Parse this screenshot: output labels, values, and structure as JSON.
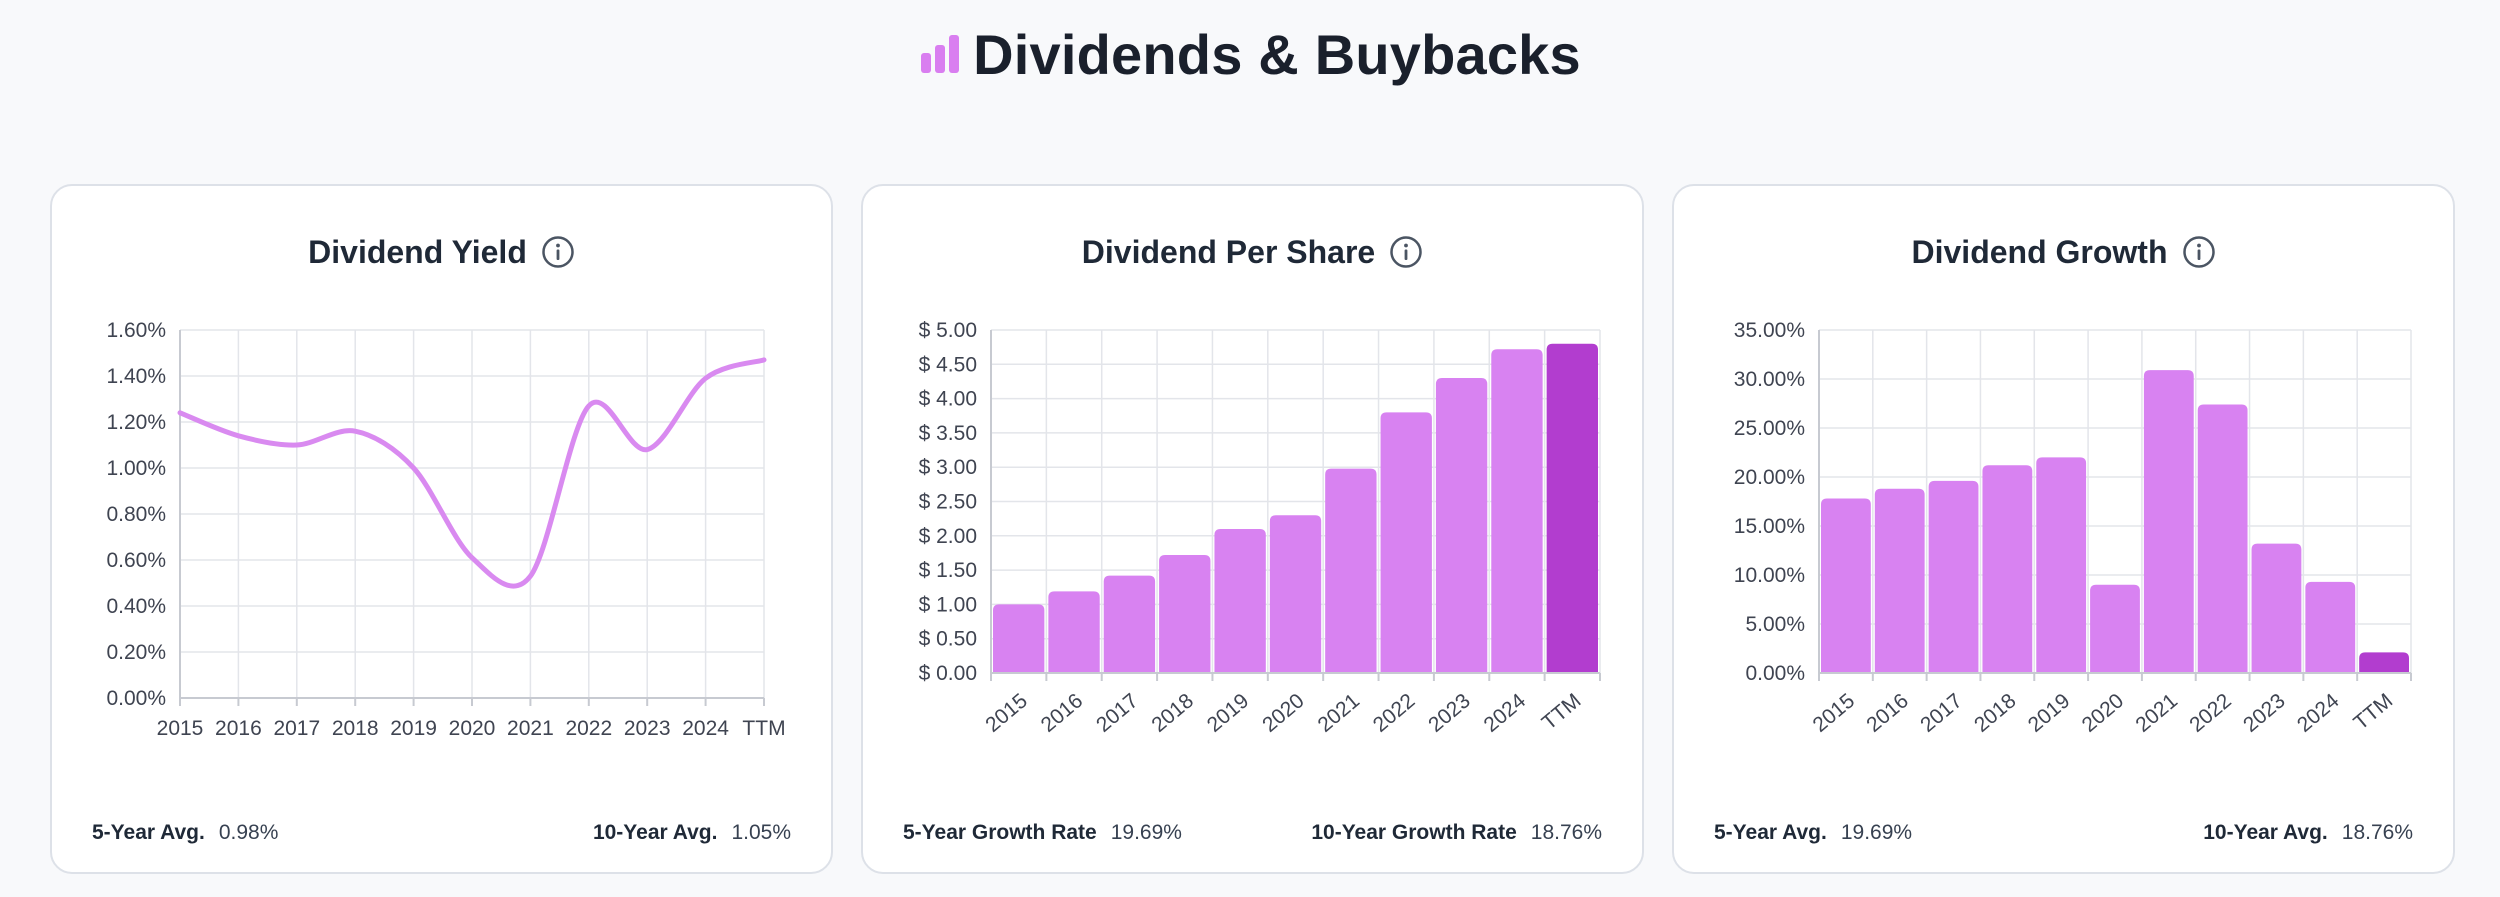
{
  "header": {
    "title": "Dividends & Buybacks",
    "icon": "bar-chart-icon",
    "accent": "#d97ef0"
  },
  "colors": {
    "bar": "#d882f1",
    "bar_highlight": "#b23dcf",
    "line": "#d98af0"
  },
  "cards": {
    "yield": {
      "title": "Dividend Yield",
      "footer": {
        "left_label": "5-Year Avg.",
        "left_value": "0.98%",
        "right_label": "10-Year Avg.",
        "right_value": "1.05%"
      }
    },
    "dps": {
      "title": "Dividend Per Share",
      "footer": {
        "left_label": "5-Year Growth Rate",
        "left_value": "19.69%",
        "right_label": "10-Year Growth Rate",
        "right_value": "18.76%"
      }
    },
    "growth": {
      "title": "Dividend Growth",
      "footer": {
        "left_label": "5-Year Avg.",
        "left_value": "19.69%",
        "right_label": "10-Year Avg.",
        "right_value": "18.76%"
      }
    }
  },
  "chart_data": [
    {
      "id": "yield",
      "type": "line",
      "title": "Dividend Yield",
      "categories": [
        "2015",
        "2016",
        "2017",
        "2018",
        "2019",
        "2020",
        "2021",
        "2022",
        "2023",
        "2024",
        "TTM"
      ],
      "values": [
        1.24,
        1.14,
        1.1,
        1.16,
        1.0,
        0.61,
        0.53,
        1.27,
        1.08,
        1.39,
        1.47
      ],
      "ylim": [
        0,
        1.6
      ],
      "yticks": [
        0,
        0.2,
        0.4,
        0.6,
        0.8,
        1.0,
        1.2,
        1.4,
        1.6
      ],
      "ytick_labels": [
        "0.00%",
        "0.20%",
        "0.40%",
        "0.60%",
        "0.80%",
        "1.00%",
        "1.20%",
        "1.40%",
        "1.60%"
      ],
      "grid": true,
      "xlabel": "",
      "ylabel": ""
    },
    {
      "id": "dps",
      "type": "bar",
      "title": "Dividend Per Share",
      "categories": [
        "2015",
        "2016",
        "2017",
        "2018",
        "2019",
        "2020",
        "2021",
        "2022",
        "2023",
        "2024",
        "TTM"
      ],
      "values": [
        1.0,
        1.19,
        1.42,
        1.72,
        2.1,
        2.3,
        2.98,
        3.8,
        4.3,
        4.72,
        4.8
      ],
      "highlight_last": true,
      "ylim": [
        0,
        5.0
      ],
      "yticks": [
        0,
        0.5,
        1.0,
        1.5,
        2.0,
        2.5,
        3.0,
        3.5,
        4.0,
        4.5,
        5.0
      ],
      "ytick_labels": [
        "$ 0.00",
        "$ 0.50",
        "$ 1.00",
        "$ 1.50",
        "$ 2.00",
        "$ 2.50",
        "$ 3.00",
        "$ 3.50",
        "$ 4.00",
        "$ 4.50",
        "$ 5.00"
      ],
      "grid": true,
      "xlabel": "",
      "ylabel": ""
    },
    {
      "id": "growth",
      "type": "bar",
      "title": "Dividend Growth",
      "categories": [
        "2015",
        "2016",
        "2017",
        "2018",
        "2019",
        "2020",
        "2021",
        "2022",
        "2023",
        "2024",
        "TTM"
      ],
      "values": [
        17.8,
        18.8,
        19.6,
        21.2,
        22.0,
        9.0,
        30.9,
        27.4,
        13.2,
        9.3,
        2.1
      ],
      "highlight_last": true,
      "ylim": [
        0,
        35
      ],
      "yticks": [
        0,
        5,
        10,
        15,
        20,
        25,
        30,
        35
      ],
      "ytick_labels": [
        "0.00%",
        "5.00%",
        "10.00%",
        "15.00%",
        "20.00%",
        "25.00%",
        "30.00%",
        "35.00%"
      ],
      "grid": true,
      "xlabel": "",
      "ylabel": ""
    }
  ]
}
